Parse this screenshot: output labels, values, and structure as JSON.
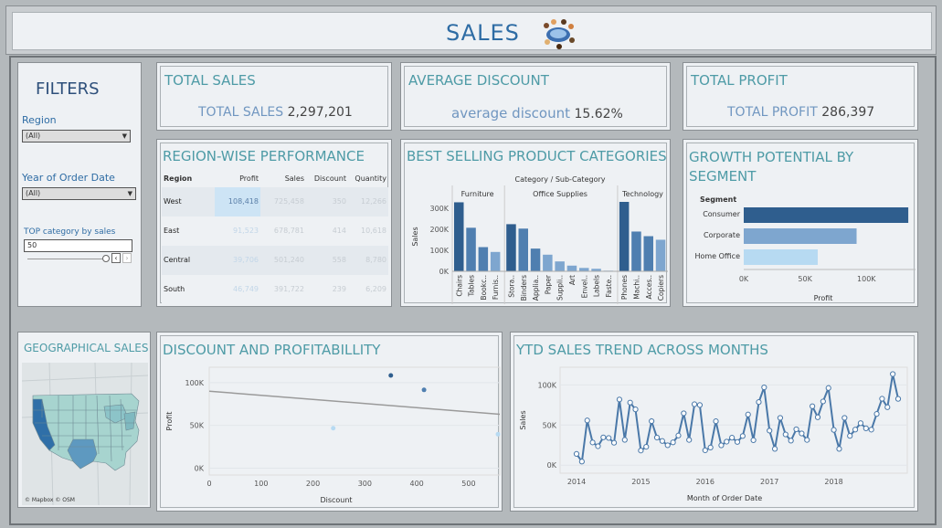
{
  "header": {
    "title": "SALES",
    "logo_icon": "team-meeting-icon"
  },
  "filters": {
    "title": "FILTERS",
    "region_label": "Region",
    "region_value": "(All)",
    "year_label": "Year of Order Date",
    "year_value": "(All)",
    "top_label": "TOP category by sales",
    "top_value": "50"
  },
  "kpis": {
    "total_sales": {
      "title": "TOTAL SALES",
      "label": "TOTAL SALES",
      "value": "2,297,201"
    },
    "avg_discount": {
      "title": "AVERAGE DISCOUNT",
      "label": "average discount",
      "value": "15.62%"
    },
    "total_profit": {
      "title": "TOTAL PROFIT",
      "label": "TOTAL PROFIT",
      "value": "286,397"
    }
  },
  "region_table": {
    "title": "REGION-WISE PERFORMANCE",
    "columns": [
      "Region",
      "Profit",
      "Sales",
      "Discount",
      "Quantity"
    ],
    "rows": [
      [
        "West",
        "108,418",
        "725,458",
        "350",
        "12,266"
      ],
      [
        "East",
        "91,523",
        "678,781",
        "414",
        "10,618"
      ],
      [
        "Central",
        "39,706",
        "501,240",
        "558",
        "8,780"
      ],
      [
        "South",
        "46,749",
        "391,722",
        "239",
        "6,209"
      ]
    ],
    "highlight_color": "#cde4f5"
  },
  "geo": {
    "title": "GEOGRAPHICAL SALES",
    "attribution": "© Mapbox © OSM"
  },
  "charts": [
    {
      "title": "BEST SELLING PRODUCT CATEGORIES",
      "chart_data": {
        "type": "bar",
        "title": "Category / Sub-Category",
        "ylabel": "Sales",
        "ylim": [
          0,
          330000
        ],
        "yticks": [
          "0K",
          "100K",
          "200K",
          "300K"
        ],
        "groups": [
          {
            "name": "Furniture",
            "categories": [
              "Chairs",
              "Tables",
              "Bookc..",
              "Furnis.."
            ],
            "values": [
              328000,
              207000,
              115000,
              92000
            ]
          },
          {
            "name": "Office Supplies",
            "categories": [
              "Stora..",
              "Binders",
              "Applia..",
              "Paper",
              "Suppli..",
              "Art",
              "Envel..",
              "Labels",
              "Faste.."
            ],
            "values": [
              224000,
              203000,
              108000,
              79000,
              47000,
              27000,
              16000,
              12000,
              3000
            ]
          },
          {
            "name": "Technology",
            "categories": [
              "Phones",
              "Machi..",
              "Acces..",
              "Copiers"
            ],
            "values": [
              330000,
              189000,
              167000,
              150000
            ]
          }
        ]
      }
    },
    {
      "title": "GROWTH POTENTIAL BY SEGMENT",
      "chart_data": {
        "type": "bar",
        "orientation": "horizontal",
        "xlabel": "Profit",
        "series_header": "Segment",
        "categories": [
          "Consumer",
          "Corporate",
          "Home Office"
        ],
        "values": [
          134119,
          91979,
          60299
        ],
        "xticks": [
          "0K",
          "50K",
          "100K"
        ],
        "xlim": [
          0,
          140000
        ],
        "colors": [
          "#2f5e8e",
          "#7ea6cf",
          "#b7daf2"
        ]
      }
    },
    {
      "title": "DISCOUNT AND PROFITABILLITY",
      "chart_data": {
        "type": "scatter",
        "xlabel": "Discount",
        "ylabel": "Profit",
        "xlim": [
          0,
          560
        ],
        "ylim": [
          -8000,
          118000
        ],
        "xticks": [
          "0",
          "100",
          "200",
          "300",
          "400",
          "500"
        ],
        "yticks": [
          "0K",
          "50K",
          "100K"
        ],
        "points": [
          {
            "x": 350,
            "y": 108418
          },
          {
            "x": 414,
            "y": 91523
          },
          {
            "x": 239,
            "y": 46749
          },
          {
            "x": 558,
            "y": 39706
          }
        ],
        "trend": [
          [
            0,
            90000
          ],
          [
            560,
            63000
          ]
        ]
      }
    },
    {
      "title": "YTD SALES TREND ACROSS MONTHS",
      "chart_data": {
        "type": "line",
        "xlabel": "Month of Order Date",
        "ylabel": "Sales",
        "ylim": [
          -10000,
          122000
        ],
        "yticks": [
          "0K",
          "50K",
          "100K"
        ],
        "xticks": [
          "2014",
          "2015",
          "2016",
          "2017",
          "2018"
        ],
        "x_start": 2014,
        "values": [
          14000,
          4500,
          55700,
          28300,
          23600,
          34600,
          33900,
          27900,
          81800,
          31500,
          78000,
          69500,
          18200,
          22900,
          54800,
          34400,
          30100,
          24800,
          28400,
          36900,
          64600,
          31400,
          75900,
          74900,
          18500,
          22000,
          54700,
          24700,
          29300,
          34200,
          28900,
          36300,
          63100,
          31100,
          78600,
          96900,
          43000,
          20300,
          58900,
          38300,
          30500,
          44700,
          39500,
          31400,
          73400,
          59700,
          79400,
          96100,
          43900,
          20300,
          58900,
          36500,
          44300,
          52300,
          45900,
          44200,
          63800,
          82700,
          72200,
          113500,
          82600
        ]
      }
    }
  ]
}
